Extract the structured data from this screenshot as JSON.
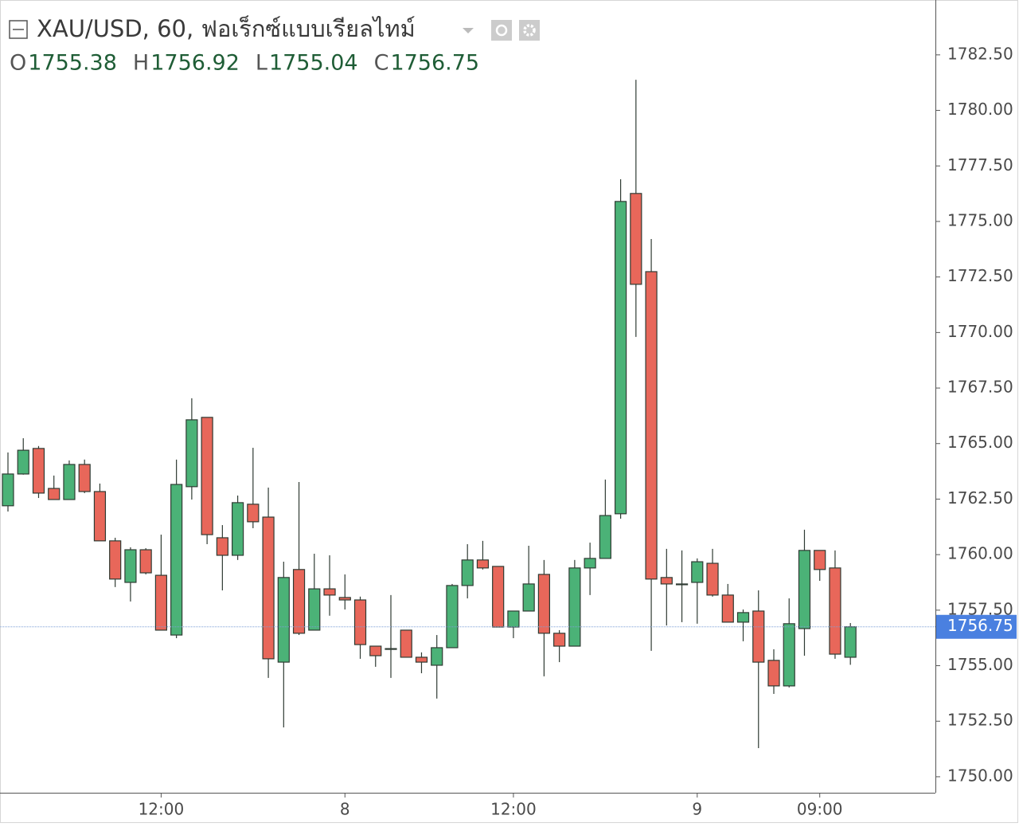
{
  "chart_data": {
    "type": "candlestick",
    "title": "XAU/USD, 60, ฟอเร็กซ์แบบเรียลไทม์",
    "ohlc": [
      {
        "label": "O",
        "value": 1755.38
      },
      {
        "label": "H",
        "value": 1756.92
      },
      {
        "label": "L",
        "value": 1755.04
      },
      {
        "label": "C",
        "value": 1756.75
      }
    ],
    "categories": [
      null,
      null,
      null,
      null,
      null,
      null,
      null,
      null,
      null,
      null,
      "12:00",
      null,
      null,
      null,
      null,
      null,
      null,
      null,
      null,
      null,
      null,
      null,
      "8",
      null,
      null,
      null,
      null,
      null,
      null,
      null,
      null,
      null,
      null,
      "12:00",
      null,
      null,
      null,
      null,
      null,
      null,
      null,
      null,
      null,
      null,
      null,
      "9",
      null,
      null,
      null,
      null,
      null,
      null,
      null,
      "09:00",
      null,
      null
    ],
    "open": [
      1762.2,
      1763.63,
      1764.78,
      1762.98,
      1762.48,
      1764.06,
      1762.84,
      1760.62,
      1758.75,
      1760.22,
      1759.07,
      1756.38,
      1763.06,
      1766.18,
      1760.76,
      1759.97,
      1762.27,
      1761.69,
      1755.16,
      1759.33,
      1756.6,
      1758.46,
      1758.07,
      1757.96,
      1755.88,
      1755.77,
      1756.6,
      1755.38,
      1755.02,
      1755.81,
      1758.61,
      1759.76,
      1759.47,
      1756.74,
      1757.46,
      1759.11,
      1756.46,
      1755.88,
      1759.4,
      1759.83,
      1761.84,
      1776.26,
      1772.74,
      1758.97,
      1758.68,
      1758.75,
      1759.61,
      1758.18,
      1756.96,
      1757.46,
      1755.24,
      1754.09,
      1756.67,
      1760.19,
      1759.4,
      1755.38
    ],
    "high": [
      1764.6,
      1765.24,
      1764.89,
      1763.56,
      1764.24,
      1764.28,
      1763.2,
      1760.76,
      1760.33,
      1760.29,
      1760.9,
      1764.28,
      1767.04,
      1766.18,
      1761.33,
      1762.66,
      1764.81,
      1763.02,
      1759.68,
      1763.27,
      1760.04,
      1759.97,
      1759.11,
      1758.11,
      1755.88,
      1758.18,
      1756.6,
      1755.6,
      1756.38,
      1758.68,
      1760.47,
      1760.62,
      1759.47,
      1757.46,
      1760.4,
      1759.76,
      1756.6,
      1759.76,
      1760.54,
      1763.38,
      1776.9,
      1781.38,
      1774.21,
      1760.26,
      1760.19,
      1759.83,
      1760.26,
      1758.68,
      1757.53,
      1758.39,
      1755.74,
      1758.03,
      1761.12,
      1760.19,
      1760.19,
      1756.92
    ],
    "low": [
      1761.94,
      1763.6,
      1762.55,
      1762.48,
      1762.48,
      1762.77,
      1760.62,
      1758.54,
      1757.89,
      1759.11,
      1756.6,
      1756.24,
      1762.48,
      1760.47,
      1758.39,
      1759.76,
      1761.19,
      1754.45,
      1752.22,
      1756.38,
      1756.6,
      1757.25,
      1757.53,
      1755.31,
      1754.95,
      1754.45,
      1755.38,
      1754.66,
      1753.52,
      1755.81,
      1758.03,
      1759.33,
      1756.74,
      1756.24,
      1757.46,
      1754.52,
      1755.16,
      1755.88,
      1758.18,
      1759.83,
      1761.62,
      1769.8,
      1755.67,
      1756.81,
      1756.96,
      1756.89,
      1758.11,
      1756.96,
      1756.1,
      1751.29,
      1753.73,
      1754.02,
      1755.45,
      1758.82,
      1755.31,
      1755.04
    ],
    "close": [
      1763.63,
      1764.7,
      1762.77,
      1762.48,
      1764.06,
      1762.84,
      1760.62,
      1758.9,
      1760.22,
      1759.18,
      1756.6,
      1763.16,
      1766.07,
      1760.9,
      1759.97,
      1762.34,
      1761.48,
      1755.31,
      1758.97,
      1756.46,
      1758.46,
      1758.18,
      1757.96,
      1755.95,
      1755.45,
      1755.74,
      1755.38,
      1755.16,
      1755.81,
      1758.61,
      1759.76,
      1759.4,
      1756.74,
      1757.46,
      1758.68,
      1756.46,
      1755.88,
      1759.4,
      1759.83,
      1761.76,
      1775.9,
      1772.17,
      1758.9,
      1758.68,
      1758.68,
      1759.68,
      1758.18,
      1756.96,
      1757.39,
      1755.16,
      1754.09,
      1756.89,
      1760.19,
      1759.33,
      1755.52,
      1756.75
    ],
    "up_color": "#4bb277",
    "down_color": "#e8675a",
    "ylim": [
      1749.28,
      1784.97
    ],
    "yticks": [
      {
        "value": 1750,
        "label": "1750.00"
      },
      {
        "value": 1752.5,
        "label": "1752.50"
      },
      {
        "value": 1755,
        "label": "1755.00"
      },
      {
        "value": 1757.5,
        "label": "1757.50"
      },
      {
        "value": 1760,
        "label": "1760.00"
      },
      {
        "value": 1762.5,
        "label": "1762.50"
      },
      {
        "value": 1765,
        "label": "1765.00"
      },
      {
        "value": 1767.5,
        "label": "1767.50"
      },
      {
        "value": 1770,
        "label": "1770.00"
      },
      {
        "value": 1772.5,
        "label": "1772.50"
      },
      {
        "value": 1775,
        "label": "1775.00"
      },
      {
        "value": 1777.5,
        "label": "1777.50"
      },
      {
        "value": 1780,
        "label": "1780.00"
      },
      {
        "value": 1782.5,
        "label": "1782.50"
      }
    ],
    "grid": false
  }
}
